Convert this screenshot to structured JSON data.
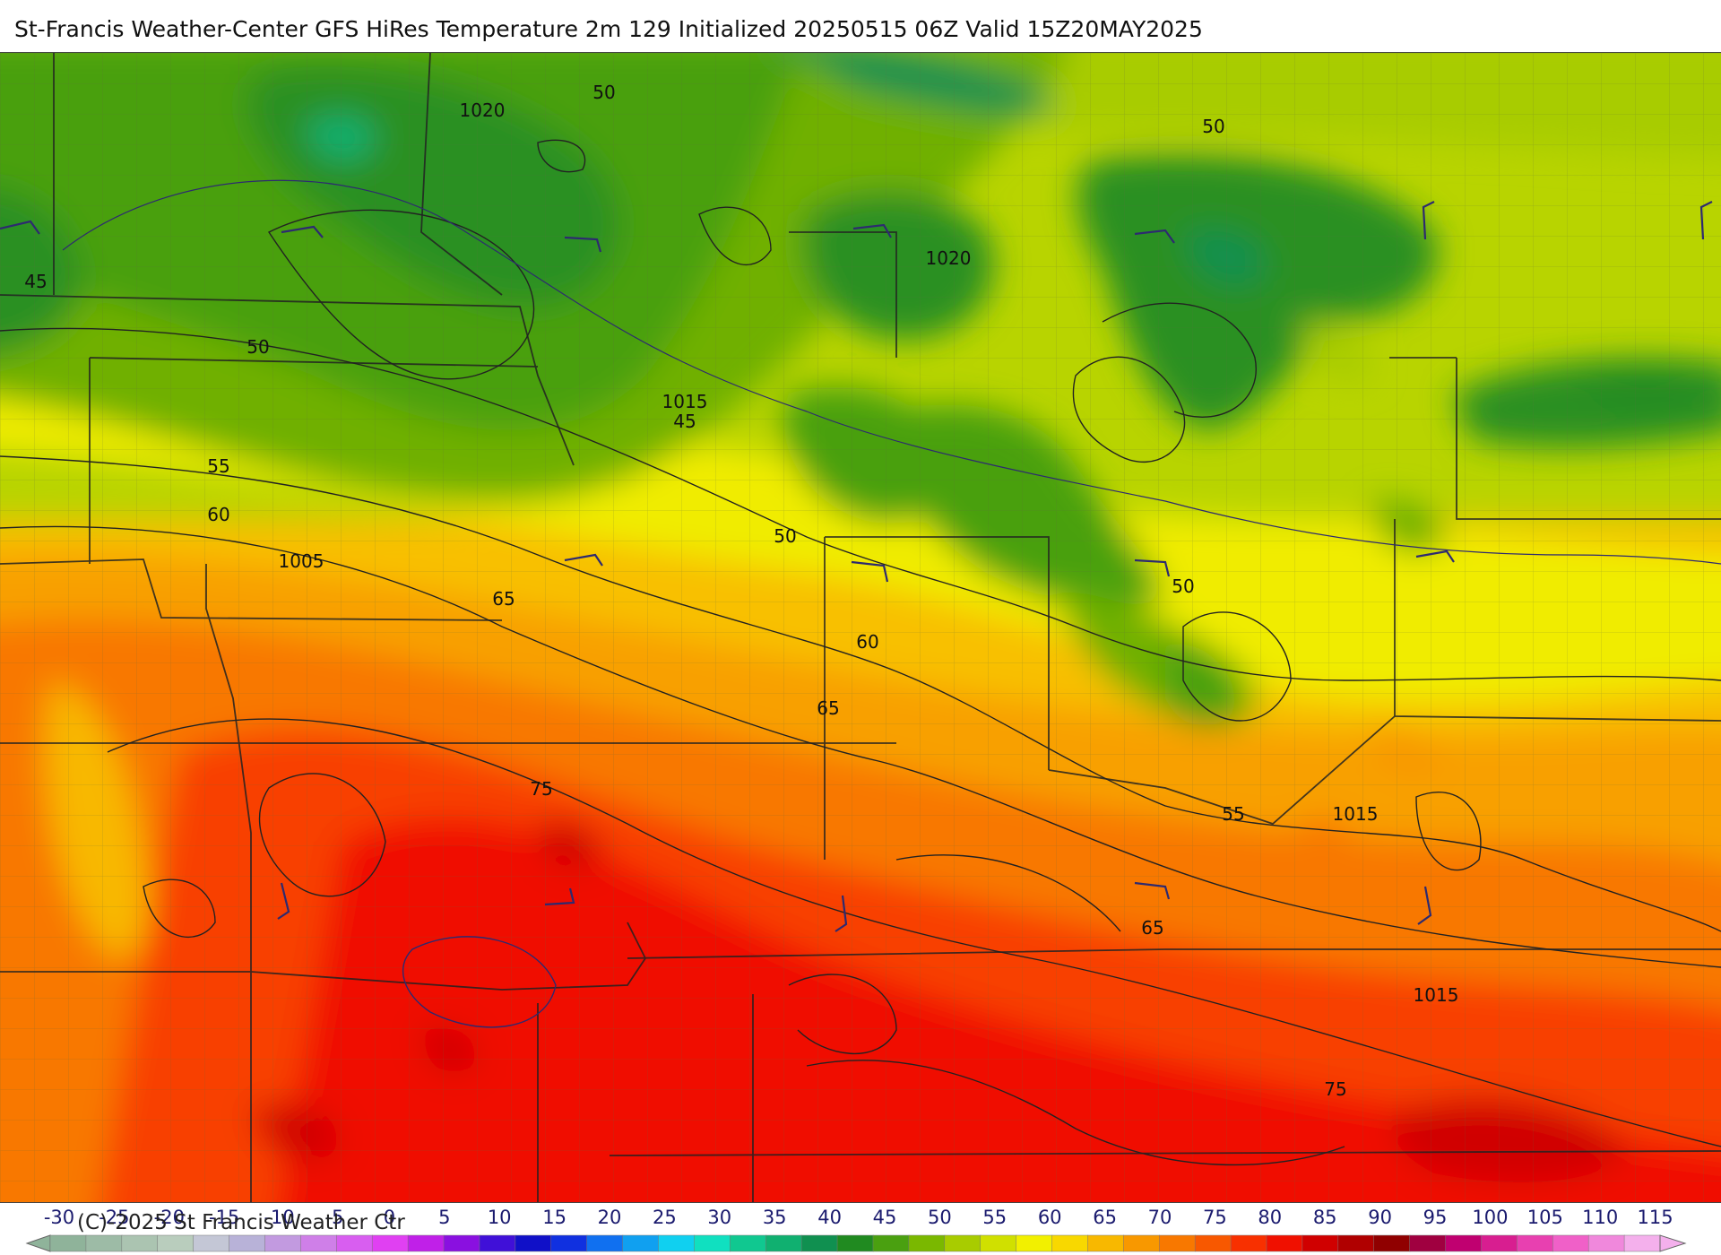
{
  "title": "St-Francis Weather-Center GFS HiRes Temperature 2m  129 Initialized 20250515 06Z Valid 15Z20MAY2025",
  "copyright": "(C)-2025 St Francis Weather Ctr",
  "colorbar": {
    "labels": [
      "-30",
      "-25",
      "-20",
      "-15",
      "-10",
      "-5",
      "0",
      "5",
      "10",
      "15",
      "20",
      "25",
      "30",
      "35",
      "40",
      "45",
      "50",
      "55",
      "60",
      "65",
      "70",
      "75",
      "80",
      "85",
      "90",
      "95",
      "100",
      "105",
      "110",
      "115"
    ],
    "colors": [
      "#8fb39a",
      "#9dbba6",
      "#abc4b1",
      "#b9cdbd",
      "#c4c7d6",
      "#b8b2d8",
      "#c29ae0",
      "#cf7fe8",
      "#d85ef0",
      "#e040f2",
      "#c020e8",
      "#8a10e0",
      "#4010d8",
      "#1010c8",
      "#1030e0",
      "#1070f0",
      "#10a0f0",
      "#10d0f0",
      "#10e0c0",
      "#10c890",
      "#10b070",
      "#109050",
      "#208a20",
      "#4aa010",
      "#7ab800",
      "#a8cc00",
      "#d0e000",
      "#f2f000",
      "#f8d800",
      "#f8b800",
      "#f89800",
      "#f87800",
      "#f85800",
      "#f83000",
      "#f01000",
      "#d00000",
      "#b00000",
      "#900000",
      "#a00040",
      "#c00070",
      "#d81e90",
      "#e840b0",
      "#f060c8",
      "#f088dc",
      "#f4b0ec"
    ]
  },
  "contour_labels": [
    {
      "text": "50"
    },
    {
      "text": "1020"
    },
    {
      "text": "50"
    },
    {
      "text": "1020"
    },
    {
      "text": "45"
    },
    {
      "text": "50"
    },
    {
      "text": "1015"
    },
    {
      "text": "45"
    },
    {
      "text": "55"
    },
    {
      "text": "60"
    },
    {
      "text": "1005"
    },
    {
      "text": "65"
    },
    {
      "text": "50"
    },
    {
      "text": "50"
    },
    {
      "text": "60"
    },
    {
      "text": "65"
    },
    {
      "text": "75"
    },
    {
      "text": "55"
    },
    {
      "text": "1015"
    },
    {
      "text": "65"
    },
    {
      "text": "1015"
    },
    {
      "text": "75"
    }
  ]
}
